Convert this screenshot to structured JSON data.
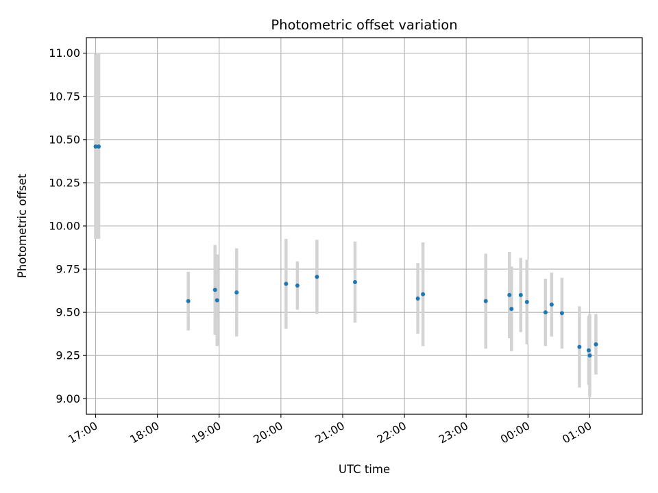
{
  "chart_data": {
    "type": "scatter",
    "title": "Photometric offset variation",
    "xlabel": "UTC time",
    "ylabel": "Photometric offset",
    "x_axis_type": "time",
    "x_start": "17:00",
    "xlim": [
      "16:51",
      "01:51"
    ],
    "ylim": [
      8.91,
      11.09
    ],
    "x_ticks": [
      "17:00",
      "18:00",
      "19:00",
      "20:00",
      "21:00",
      "22:00",
      "23:00",
      "00:00",
      "01:00"
    ],
    "y_ticks": [
      9.0,
      9.25,
      9.5,
      9.75,
      10.0,
      10.25,
      10.5,
      10.75,
      11.0
    ],
    "y_tick_labels": [
      "9.00",
      "9.25",
      "9.50",
      "9.75",
      "10.00",
      "10.25",
      "10.50",
      "10.75",
      "11.00"
    ],
    "grid": true,
    "legend": "none",
    "marker_color": "#1f77b4",
    "errorbar_color": "#d3d3d3",
    "points": [
      {
        "t": "17:00",
        "y": 10.46,
        "err": 0.535
      },
      {
        "t": "17:03",
        "y": 10.46,
        "err": 0.535
      },
      {
        "t": "18:30",
        "y": 9.565,
        "err": 0.17
      },
      {
        "t": "18:56",
        "y": 9.63,
        "err": 0.26
      },
      {
        "t": "18:58",
        "y": 9.57,
        "err": 0.265
      },
      {
        "t": "19:17",
        "y": 9.615,
        "err": 0.255
      },
      {
        "t": "20:05",
        "y": 9.665,
        "err": 0.26
      },
      {
        "t": "20:16",
        "y": 9.655,
        "err": 0.14
      },
      {
        "t": "20:35",
        "y": 9.705,
        "err": 0.215
      },
      {
        "t": "21:12",
        "y": 9.675,
        "err": 0.235
      },
      {
        "t": "22:13",
        "y": 9.58,
        "err": 0.205
      },
      {
        "t": "22:18",
        "y": 9.605,
        "err": 0.3
      },
      {
        "t": "23:19",
        "y": 9.565,
        "err": 0.275
      },
      {
        "t": "23:42",
        "y": 9.6,
        "err": 0.25
      },
      {
        "t": "23:44",
        "y": 9.52,
        "err": 0.245
      },
      {
        "t": "23:53",
        "y": 9.6,
        "err": 0.215
      },
      {
        "t": "23:59",
        "y": 9.56,
        "err": 0.245
      },
      {
        "t": "00:17",
        "y": 9.5,
        "err": 0.195
      },
      {
        "t": "00:23",
        "y": 9.545,
        "err": 0.185
      },
      {
        "t": "00:33",
        "y": 9.495,
        "err": 0.205
      },
      {
        "t": "00:50",
        "y": 9.3,
        "err": 0.235
      },
      {
        "t": "00:59",
        "y": 9.28,
        "err": 0.2
      },
      {
        "t": "01:00",
        "y": 9.25,
        "err": 0.24
      },
      {
        "t": "01:06",
        "y": 9.315,
        "err": 0.175
      }
    ]
  }
}
